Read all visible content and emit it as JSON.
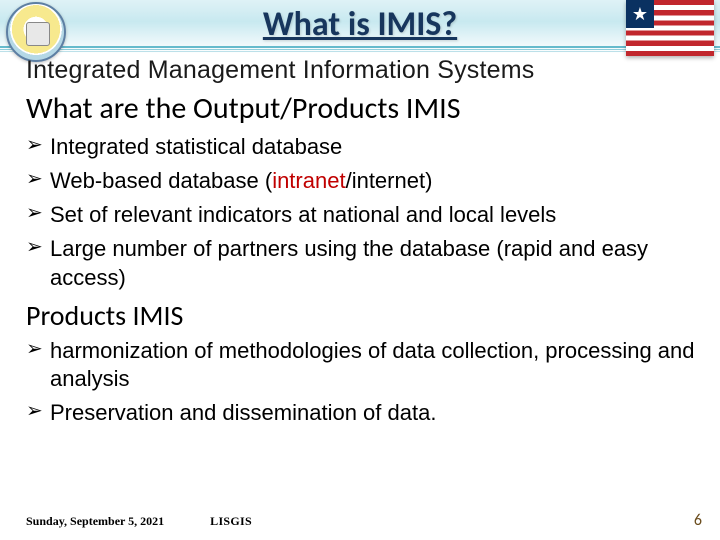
{
  "colors": {
    "title": "#17365d",
    "intranet": "#c00000",
    "flag_red": "#c1272d",
    "flag_blue": "#0a3161",
    "pagenum": "#6b4d1e",
    "band_top": "#dff2f6"
  },
  "header": {
    "title": "What is IMIS?",
    "subtitle": "Integrated  Management Information Systems"
  },
  "sections": [
    {
      "heading": "What are the Output/Products IMIS",
      "items": [
        {
          "text": "Integrated statistical database"
        },
        {
          "pre": "Web-based database (",
          "hl": "intranet",
          "post": "/internet)"
        },
        {
          "text": "Set of relevant indicators at national and local levels"
        },
        {
          "text": "Large number of partners using the database (rapid and easy access)"
        }
      ]
    },
    {
      "heading": "Products IMIS",
      "items": [
        {
          "text": "harmonization of methodologies of data collection, processing and analysis"
        },
        {
          "text": "Preservation and dissemination of data."
        }
      ]
    }
  ],
  "footer": {
    "date": "Sunday, September 5, 2021",
    "org": "LISGIS",
    "page": "6"
  },
  "flag": {
    "star": "★"
  }
}
